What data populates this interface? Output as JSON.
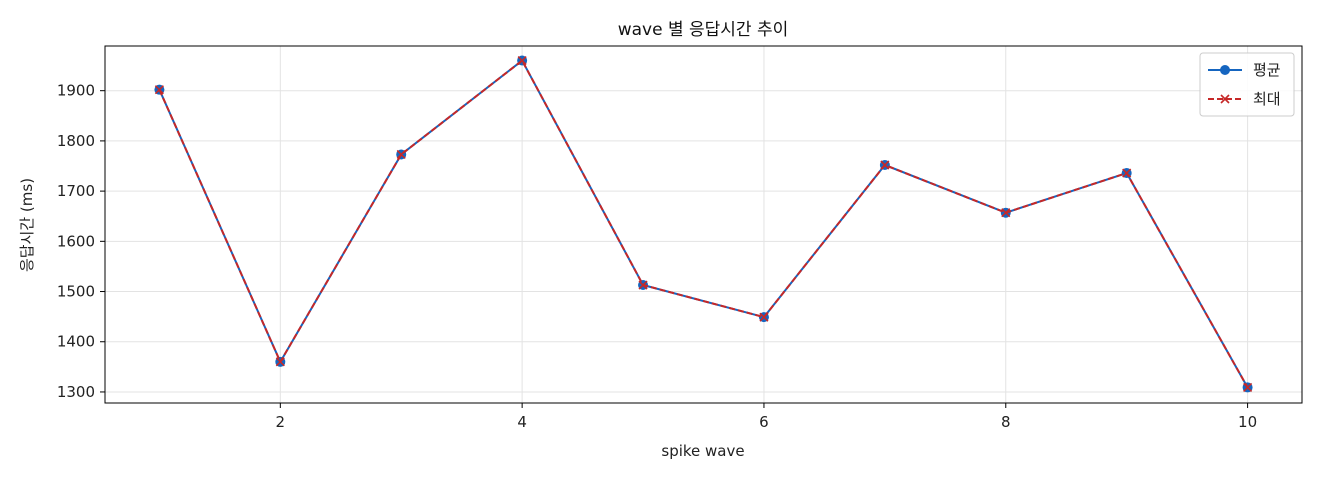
{
  "chart_data": {
    "type": "line",
    "title": "wave 별 응답시간 추이",
    "xlabel": "spike wave",
    "ylabel": "응답시간 (ms)",
    "x": [
      1,
      2,
      3,
      4,
      5,
      6,
      7,
      8,
      9,
      10
    ],
    "xlim": [
      0.55,
      10.45
    ],
    "ylim": [
      1278,
      1989
    ],
    "xticks": [
      2,
      4,
      6,
      8,
      10
    ],
    "yticks": [
      1300,
      1400,
      1500,
      1600,
      1700,
      1800,
      1900
    ],
    "grid": true,
    "legend_position": "upper right",
    "series": [
      {
        "name": "평균",
        "values": [
          1902,
          1360,
          1773,
          1960,
          1513,
          1449,
          1752,
          1657,
          1736,
          1309
        ],
        "color": "#1565c0",
        "line_style": "solid",
        "marker": "circle"
      },
      {
        "name": "최대",
        "values": [
          1902,
          1360,
          1773,
          1960,
          1513,
          1449,
          1752,
          1657,
          1736,
          1309
        ],
        "color": "#c62828",
        "line_style": "dashed",
        "marker": "x"
      }
    ]
  }
}
